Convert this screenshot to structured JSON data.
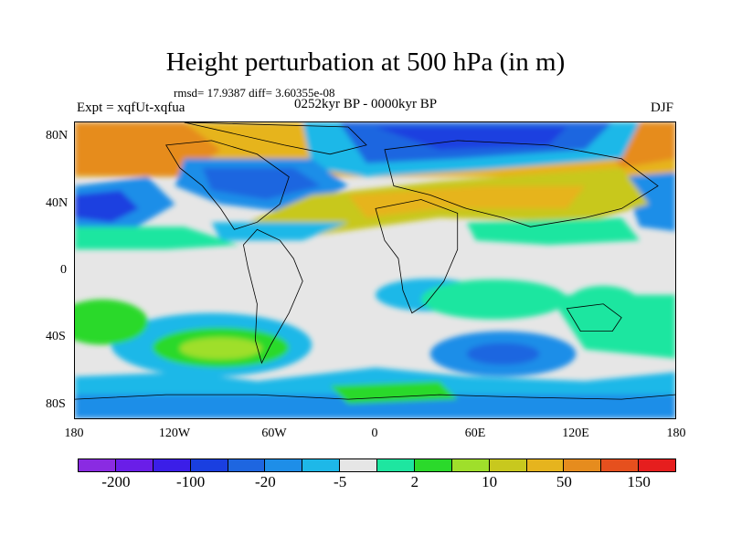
{
  "title": "Height perturbation at 500 hPa (in m)",
  "stats": "rmsd= 17.9387 diff= 3.60355e-08",
  "expt": "Expt = xqfUt-xqfua",
  "period": "0252kyr BP - 0000kyr BP",
  "season": "DJF",
  "lat_labels": [
    "80N",
    "40N",
    "0",
    "40S",
    "80S"
  ],
  "lon_labels": [
    "180",
    "120W",
    "60W",
    "0",
    "60E",
    "120E",
    "180"
  ],
  "colorbar": {
    "colors": [
      "#8a2be2",
      "#6a1ee8",
      "#3b1ee8",
      "#1a3fe0",
      "#1e66e0",
      "#1e8ee8",
      "#1eb8e8",
      "#e6e6e6",
      "#1ee6a0",
      "#2bd92b",
      "#9fdf2b",
      "#c8c81e",
      "#e6b41e",
      "#e68c1e",
      "#e6501e",
      "#e61e1e"
    ],
    "labels": [
      "-200",
      "-100",
      "-20",
      "-5",
      "2",
      "10",
      "50",
      "150"
    ]
  }
}
